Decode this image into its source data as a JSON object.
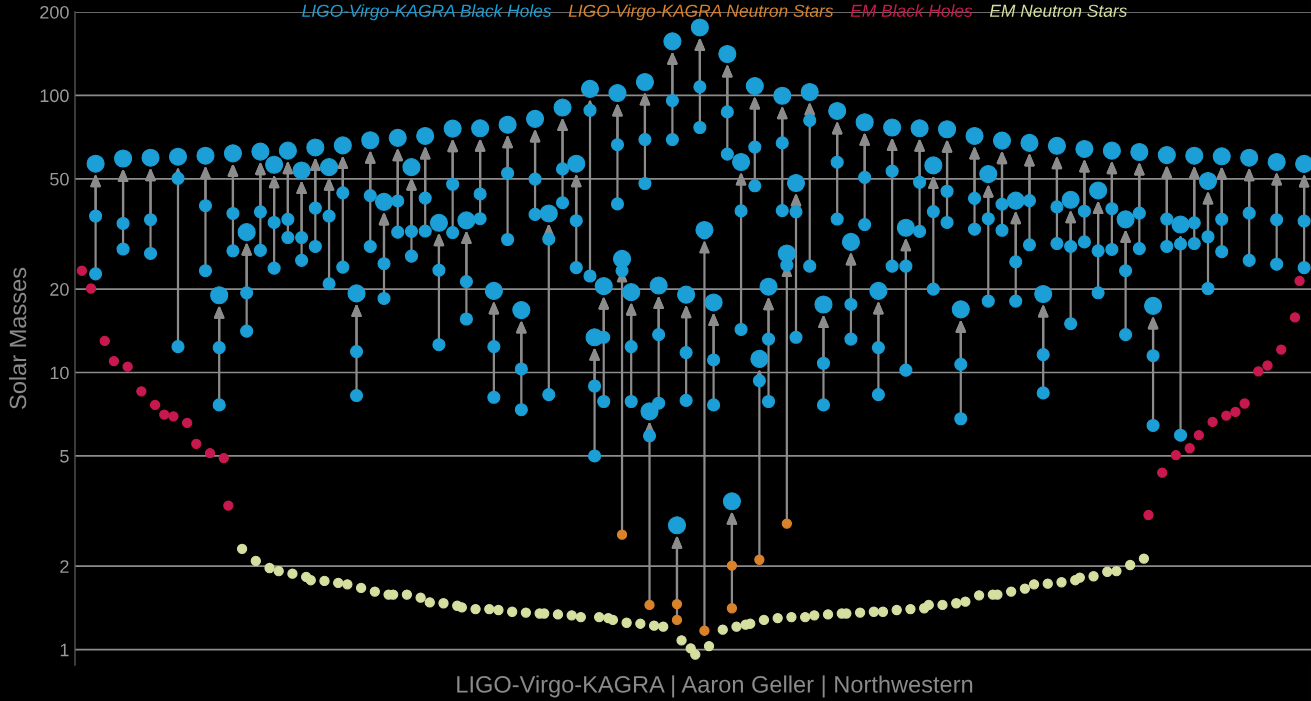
{
  "chart_data": {
    "type": "scatter",
    "ylabel": "Solar Masses",
    "log": "y",
    "ylim": [
      0.88,
      200
    ],
    "yticks": [
      1,
      2,
      5,
      10,
      20,
      50,
      100,
      200
    ],
    "tick_labels": "y",
    "grid": "y",
    "marker": "circle",
    "annotations": [
      "LIGO-Virgo-KAGRA | Aaron Geller | Northwestern"
    ],
    "categories": [
      null,
      null,
      null,
      null,
      null,
      null,
      null,
      null,
      null,
      null,
      null,
      null,
      null,
      null,
      null,
      null,
      null,
      null,
      null,
      null,
      null,
      null,
      null,
      null,
      null,
      null,
      null,
      null,
      null,
      null,
      null,
      null,
      null,
      null,
      null,
      null,
      null,
      null,
      null,
      null,
      null,
      null,
      null,
      null,
      null,
      null,
      null,
      null,
      null,
      null,
      null,
      null,
      null,
      null,
      null,
      null,
      null,
      null,
      null,
      null,
      null,
      null,
      null,
      null,
      null,
      null,
      null,
      null,
      null,
      null,
      null,
      null,
      null,
      null,
      null,
      null,
      null,
      null,
      null,
      null,
      null,
      null,
      null,
      null,
      null,
      null,
      null,
      null,
      null,
      null,
      null,
      null,
      null,
      null,
      null,
      null,
      null,
      null,
      null,
      null,
      null,
      null,
      null,
      null,
      null,
      null,
      null,
      null,
      null,
      null,
      null,
      null,
      null,
      null,
      null,
      null,
      null,
      null,
      null,
      null,
      null,
      null,
      null,
      null,
      null,
      null,
      null,
      null,
      null,
      null,
      null,
      null,
      null,
      null,
      null,
      null,
      null,
      null,
      null,
      null,
      null,
      null,
      null,
      null,
      null,
      null,
      null,
      null,
      null,
      null,
      null,
      null,
      null,
      null,
      null,
      null,
      null,
      null,
      null,
      null,
      null,
      null,
      null,
      null,
      null,
      null,
      null,
      null,
      null,
      null,
      null,
      null,
      null,
      null,
      null,
      null,
      null,
      null,
      null,
      null,
      null,
      null,
      null,
      null,
      null,
      null,
      null,
      null,
      null,
      null,
      null,
      null,
      null,
      null,
      null,
      null,
      null,
      null,
      null,
      null,
      null,
      null,
      null,
      null,
      null,
      null,
      null,
      null,
      null,
      null,
      null,
      null,
      null,
      null,
      null,
      null,
      null,
      null,
      null,
      null,
      null,
      null,
      null,
      null,
      null,
      null,
      null,
      null,
      null,
      null,
      null,
      null,
      null,
      null,
      null,
      null,
      null,
      null,
      null,
      null,
      null,
      null,
      null,
      null,
      null,
      null,
      null,
      null,
      null,
      null,
      null,
      null,
      null,
      null,
      null,
      null,
      null,
      null,
      null,
      null,
      null,
      null,
      null,
      null,
      null,
      null,
      null,
      null,
      null,
      null
    ],
    "series": [
      {
        "name": "LIGO-Virgo-KAGRA Black Holes",
        "color": "#1b9fd6",
        "values": [
          null,
          null,
          null,
          null,
          56.7,
          null,
          null,
          null,
          null,
          null,
          59.2,
          null,
          null,
          null,
          null,
          null,
          59.6,
          null,
          null,
          null,
          null,
          null,
          60.1,
          null,
          null,
          null,
          null,
          null,
          60.6,
          null,
          null,
          19.0,
          null,
          null,
          61.8,
          null,
          null,
          32.1,
          null,
          null,
          62.7,
          null,
          null,
          56.2,
          null,
          null,
          63.2,
          null,
          null,
          53.6,
          null,
          null,
          64.9,
          null,
          null,
          55.1,
          null,
          null,
          66.0,
          null,
          null,
          19.3,
          null,
          null,
          68.9,
          null,
          null,
          41.3,
          null,
          null,
          70.3,
          null,
          null,
          55.1,
          null,
          null,
          71.4,
          null,
          null,
          34.7,
          null,
          null,
          75.9,
          null,
          null,
          35.4,
          null,
          null,
          76.1,
          null,
          null,
          19.7,
          null,
          null,
          78.4,
          null,
          null,
          16.8,
          null,
          null,
          82.3,
          null,
          null,
          37.5,
          null,
          null,
          90.4,
          null,
          null,
          56.7,
          null,
          null,
          105.6,
          13.4,
          null,
          20.5,
          null,
          null,
          102,
          25.7,
          null,
          19.5,
          null,
          null,
          111.8,
          7.24,
          null,
          20.6,
          null,
          null,
          156.7,
          2.81,
          null,
          19.1,
          null,
          null,
          175.9,
          32.7,
          null,
          17.9,
          null,
          null,
          141.1,
          3.43,
          null,
          57.5,
          null,
          null,
          108.1,
          11.2,
          null,
          20.4,
          null,
          null,
          99.7,
          26.9,
          null,
          48.3,
          null,
          null,
          102.9,
          null,
          null,
          17.6,
          null,
          null,
          87.9,
          null,
          null,
          29.6,
          null,
          null,
          80.0,
          null,
          null,
          19.7,
          null,
          null,
          76.6,
          null,
          null,
          33.3,
          null,
          null,
          76.1,
          null,
          null,
          55.9,
          null,
          null,
          75.5,
          null,
          null,
          16.9,
          null,
          null,
          71.4,
          null,
          null,
          52.0,
          null,
          null,
          68.7,
          null,
          null,
          41.7,
          null,
          null,
          67.4,
          null,
          null,
          19.2,
          null,
          null,
          65.8,
          null,
          null,
          42.0,
          null,
          null,
          64.1,
          null,
          null,
          45.4,
          null,
          null,
          63.2,
          null,
          null,
          35.7,
          null,
          null,
          62.5,
          null,
          null,
          17.4,
          null,
          null,
          60.9,
          null,
          null,
          34.2,
          null,
          null,
          60.6,
          null,
          null,
          49.1,
          null,
          null,
          60.3,
          null,
          null,
          null,
          null,
          null,
          59.6,
          null,
          null,
          null,
          null,
          null,
          57.5,
          null,
          null,
          null,
          null,
          null,
          56.6,
          null
        ]
      },
      {
        "color": "#1b9fd6",
        "values": [
          null,
          null,
          null,
          null,
          36.7,
          null,
          null,
          null,
          null,
          null,
          34.5,
          null,
          null,
          null,
          null,
          null,
          35.6,
          null,
          null,
          null,
          null,
          null,
          50.2,
          null,
          null,
          null,
          null,
          null,
          40.0,
          null,
          null,
          12.3,
          null,
          null,
          37.5,
          null,
          null,
          19.4,
          null,
          null,
          38.0,
          null,
          null,
          34.8,
          null,
          null,
          35.7,
          null,
          null,
          30.7,
          null,
          null,
          39.2,
          null,
          null,
          36.7,
          null,
          null,
          44.5,
          null,
          null,
          11.9,
          null,
          null,
          43.5,
          null,
          null,
          24.7,
          null,
          null,
          41.6,
          null,
          null,
          32.3,
          null,
          null,
          42.6,
          null,
          null,
          23.4,
          null,
          null,
          47.8,
          null,
          null,
          21.3,
          null,
          null,
          44.1,
          null,
          null,
          12.4,
          null,
          null,
          52.4,
          null,
          null,
          10.3,
          null,
          null,
          49.9,
          null,
          null,
          30.3,
          null,
          null,
          54.3,
          null,
          null,
          35.3,
          null,
          null,
          88.4,
          8.94,
          null,
          13.4,
          null,
          null,
          66.4,
          23.3,
          null,
          12.4,
          null,
          null,
          69.3,
          5.91,
          null,
          13.7,
          null,
          null,
          95.8,
          null,
          null,
          11.8,
          null,
          null,
          107.4,
          31.9,
          null,
          11.1,
          null,
          null,
          87.2,
          null,
          null,
          38.3,
          null,
          null,
          65.1,
          9.34,
          null,
          13.2,
          null,
          null,
          67.4,
          24.4,
          null,
          38.0,
          null,
          null,
          81.2,
          null,
          null,
          10.8,
          null,
          null,
          57.4,
          null,
          null,
          17.6,
          null,
          null,
          50.6,
          null,
          null,
          12.3,
          null,
          null,
          53.3,
          null,
          null,
          24.2,
          null,
          null,
          48.6,
          null,
          null,
          38.1,
          null,
          null,
          45.1,
          null,
          null,
          10.7,
          null,
          null,
          42.5,
          null,
          null,
          35.9,
          null,
          null,
          40.5,
          null,
          null,
          25.1,
          null,
          null,
          41.7,
          null,
          null,
          11.6,
          null,
          null,
          39.6,
          null,
          null,
          28.5,
          null,
          null,
          38.2,
          null,
          null,
          27.5,
          null,
          null,
          39.0,
          null,
          null,
          23.3,
          null,
          null,
          37.6,
          null,
          null,
          11.5,
          null,
          null,
          35.8,
          null,
          null,
          29.1,
          null,
          null,
          34.7,
          null,
          null,
          30.9,
          null,
          null,
          35.7,
          null,
          null,
          null,
          null,
          null,
          37.6,
          null,
          null,
          null,
          null,
          null,
          35.6,
          null,
          null,
          null,
          null,
          null,
          35.2,
          null
        ]
      },
      {
        "color": "#1b9fd6",
        "values": [
          null,
          null,
          null,
          null,
          22.7,
          null,
          null,
          null,
          null,
          null,
          27.9,
          null,
          null,
          null,
          null,
          null,
          26.9,
          null,
          null,
          null,
          null,
          null,
          12.4,
          null,
          null,
          null,
          null,
          null,
          23.3,
          null,
          null,
          7.64,
          null,
          null,
          27.5,
          null,
          null,
          14.1,
          null,
          null,
          27.6,
          null,
          null,
          23.8,
          null,
          null,
          30.7,
          null,
          null,
          25.4,
          null,
          null,
          28.5,
          null,
          null,
          20.9,
          null,
          null,
          24.0,
          null,
          null,
          8.26,
          null,
          null,
          28.5,
          null,
          null,
          18.5,
          null,
          null,
          32.1,
          null,
          null,
          26.3,
          null,
          null,
          32.4,
          null,
          null,
          12.6,
          null,
          null,
          32.0,
          null,
          null,
          15.6,
          null,
          null,
          35.9,
          null,
          null,
          8.14,
          null,
          null,
          30.2,
          null,
          null,
          7.34,
          null,
          null,
          37.2,
          null,
          null,
          8.32,
          null,
          null,
          41.0,
          null,
          null,
          23.9,
          null,
          null,
          22.3,
          5.0,
          null,
          7.86,
          null,
          null,
          40.6,
          null,
          null,
          7.86,
          null,
          null,
          48.1,
          null,
          null,
          7.75,
          null,
          null,
          69.3,
          null,
          null,
          7.93,
          null,
          null,
          76.6,
          null,
          null,
          7.64,
          null,
          null,
          61.4,
          null,
          null,
          14.3,
          null,
          null,
          47.2,
          null,
          null,
          7.86,
          null,
          null,
          38.4,
          null,
          null,
          13.4,
          null,
          null,
          24.2,
          null,
          null,
          7.64,
          null,
          null,
          35.8,
          null,
          null,
          13.2,
          null,
          null,
          34.2,
          null,
          null,
          8.32,
          null,
          null,
          24.2,
          null,
          null,
          10.2,
          null,
          null,
          32.3,
          null,
          null,
          20.0,
          null,
          null,
          34.8,
          null,
          null,
          6.81,
          null,
          null,
          32.9,
          null,
          null,
          18.1,
          null,
          null,
          32.6,
          null,
          null,
          18.1,
          null,
          null,
          28.9,
          null,
          null,
          8.44,
          null,
          null,
          29.2,
          null,
          null,
          15.0,
          null,
          null,
          29.6,
          null,
          null,
          19.4,
          null,
          null,
          27.8,
          null,
          null,
          13.7,
          null,
          null,
          28.0,
          null,
          null,
          6.44,
          null,
          null,
          28.5,
          null,
          null,
          5.94,
          null,
          null,
          29.2,
          null,
          null,
          20.1,
          null,
          null,
          27.3,
          null,
          null,
          null,
          null,
          null,
          25.4,
          null,
          null,
          null,
          null,
          null,
          24.6,
          null,
          null,
          null,
          null,
          null,
          23.9,
          null
        ]
      },
      {
        "name": "LIGO-Virgo-KAGRA Neutron Stars",
        "color": "#d9822b",
        "values": [
          null,
          null,
          null,
          null,
          null,
          null,
          null,
          null,
          null,
          null,
          null,
          null,
          null,
          null,
          null,
          null,
          null,
          null,
          null,
          null,
          null,
          null,
          null,
          null,
          null,
          null,
          null,
          null,
          null,
          null,
          null,
          null,
          null,
          null,
          null,
          null,
          null,
          null,
          null,
          null,
          null,
          null,
          null,
          null,
          null,
          null,
          null,
          null,
          null,
          null,
          null,
          null,
          null,
          null,
          null,
          null,
          null,
          null,
          null,
          null,
          null,
          null,
          null,
          null,
          null,
          null,
          null,
          null,
          null,
          null,
          null,
          null,
          null,
          null,
          null,
          null,
          null,
          null,
          null,
          null,
          null,
          null,
          null,
          null,
          null,
          null,
          null,
          null,
          null,
          null,
          null,
          null,
          null,
          null,
          null,
          null,
          null,
          null,
          null,
          null,
          null,
          null,
          null,
          null,
          null,
          null,
          null,
          null,
          null,
          null,
          null,
          null,
          null,
          null,
          null,
          null,
          null,
          null,
          null,
          2.6,
          null,
          null,
          null,
          null,
          null,
          1.45,
          null,
          null,
          null,
          null,
          null,
          1.46,
          null,
          null,
          null,
          null,
          null,
          1.17,
          null,
          null,
          null,
          null,
          null,
          2.01,
          null,
          null,
          null,
          null,
          null,
          2.11,
          null,
          null,
          null,
          null,
          null,
          2.85,
          null,
          null,
          null,
          null,
          null,
          null,
          null,
          null,
          null,
          null,
          null,
          null,
          null,
          null,
          null,
          null,
          null,
          null,
          null,
          null,
          null,
          null,
          null,
          null,
          null,
          null,
          null,
          null,
          null,
          null,
          null,
          null,
          null,
          null,
          null,
          null,
          null,
          null,
          null,
          null,
          null,
          null,
          null,
          null,
          null,
          null,
          null,
          null,
          null,
          null,
          null,
          null,
          null,
          null,
          null,
          null,
          null,
          null,
          null,
          null,
          null,
          null,
          null,
          null,
          null,
          null,
          null,
          null,
          null,
          null,
          null,
          null,
          null,
          null,
          null,
          null,
          null,
          null,
          null,
          null,
          null,
          null,
          null,
          null,
          null,
          null,
          null,
          null,
          null,
          null,
          null,
          null,
          null,
          null,
          null,
          null,
          null,
          null,
          null,
          null,
          null,
          null,
          null,
          null,
          null,
          null,
          null,
          null,
          null,
          null,
          null,
          null,
          null,
          null
        ]
      },
      {
        "color": "#d9822b",
        "values": [
          null,
          null,
          null,
          null,
          null,
          null,
          null,
          null,
          null,
          null,
          null,
          null,
          null,
          null,
          null,
          null,
          null,
          null,
          null,
          null,
          null,
          null,
          null,
          null,
          null,
          null,
          null,
          null,
          null,
          null,
          null,
          null,
          null,
          null,
          null,
          null,
          null,
          null,
          null,
          null,
          null,
          null,
          null,
          null,
          null,
          null,
          null,
          null,
          null,
          null,
          null,
          null,
          null,
          null,
          null,
          null,
          null,
          null,
          null,
          null,
          null,
          null,
          null,
          null,
          null,
          null,
          null,
          null,
          null,
          null,
          null,
          null,
          null,
          null,
          null,
          null,
          null,
          null,
          null,
          null,
          null,
          null,
          null,
          null,
          null,
          null,
          null,
          null,
          null,
          null,
          null,
          null,
          null,
          null,
          null,
          null,
          null,
          null,
          null,
          null,
          null,
          null,
          null,
          null,
          null,
          null,
          null,
          null,
          null,
          null,
          null,
          null,
          null,
          null,
          null,
          null,
          null,
          null,
          null,
          null,
          null,
          null,
          null,
          null,
          null,
          null,
          null,
          null,
          null,
          null,
          null,
          1.28,
          null,
          null,
          null,
          null,
          null,
          null,
          null,
          null,
          null,
          null,
          null,
          1.41,
          null,
          null,
          null,
          null,
          null,
          null,
          null,
          null,
          null,
          null,
          null,
          null,
          null,
          null,
          null,
          null,
          null,
          null,
          null,
          null,
          null,
          null,
          null,
          null,
          null,
          null,
          null,
          null,
          null,
          null,
          null,
          null,
          null,
          null,
          null,
          null,
          null,
          null,
          null,
          null,
          null,
          null,
          null,
          null,
          null,
          null,
          null,
          null,
          null,
          null,
          null,
          null,
          null,
          null,
          null,
          null,
          null,
          null,
          null,
          null,
          null,
          null,
          null,
          null,
          null,
          null,
          null,
          null,
          null,
          null,
          null,
          null,
          null,
          null,
          null,
          null,
          null,
          null,
          null,
          null,
          null,
          null,
          null,
          null,
          null,
          null,
          null,
          null,
          null,
          null,
          null,
          null,
          null,
          null,
          null,
          null,
          null,
          null,
          null,
          null,
          null,
          null,
          null,
          null,
          null,
          null,
          null,
          null,
          null,
          null,
          null,
          null,
          null,
          null,
          null,
          null,
          null,
          null,
          null,
          null,
          null,
          null,
          null,
          null,
          null,
          null
        ]
      },
      {
        "name": "EM Black Holes",
        "color": "#c8194f",
        "values": [
          null,
          23.3,
          null,
          20.1,
          null,
          null,
          13.0,
          null,
          11.0,
          null,
          null,
          10.5,
          null,
          null,
          8.55,
          null,
          null,
          7.64,
          null,
          7.05,
          null,
          6.95,
          null,
          null,
          6.58,
          null,
          5.53,
          null,
          null,
          5.12,
          null,
          null,
          4.91,
          3.31,
          null,
          null,
          null,
          null,
          null,
          null,
          null,
          null,
          null,
          null,
          null,
          null,
          null,
          null,
          null,
          null,
          null,
          null,
          null,
          null,
          null,
          null,
          null,
          null,
          null,
          null,
          null,
          null,
          null,
          null,
          null,
          null,
          null,
          null,
          null,
          null,
          null,
          null,
          null,
          null,
          null,
          null,
          null,
          null,
          null,
          null,
          null,
          null,
          null,
          null,
          null,
          null,
          null,
          null,
          null,
          null,
          null,
          null,
          null,
          null,
          null,
          null,
          null,
          null,
          null,
          null,
          null,
          null,
          null,
          null,
          null,
          null,
          null,
          null,
          null,
          null,
          null,
          null,
          null,
          null,
          null,
          null,
          null,
          null,
          null,
          null,
          null,
          null,
          null,
          null,
          null,
          null,
          null,
          null,
          null,
          null,
          null,
          null,
          null,
          null,
          null,
          null,
          null,
          null,
          null,
          null,
          null,
          null,
          null,
          null,
          null,
          null,
          null,
          null,
          null,
          null,
          null,
          null,
          null,
          null,
          null,
          null,
          null,
          null,
          null,
          null,
          null,
          null,
          null,
          null,
          null,
          null,
          null,
          null,
          null,
          null,
          null,
          null,
          null,
          null,
          null,
          null,
          null,
          null,
          null,
          null,
          null,
          null,
          null,
          null,
          null,
          null,
          null,
          null,
          null,
          null,
          null,
          null,
          null,
          null,
          null,
          null,
          null,
          null,
          null,
          null,
          null,
          null,
          null,
          null,
          null,
          null,
          null,
          null,
          null,
          null,
          null,
          null,
          null,
          null,
          null,
          null,
          null,
          null,
          null,
          null,
          null,
          null,
          null,
          null,
          null,
          null,
          null,
          null,
          null,
          null,
          null,
          null,
          null,
          null,
          3.06,
          null,
          null,
          4.35,
          null,
          null,
          5.03,
          null,
          null,
          5.33,
          null,
          5.94,
          null,
          null,
          6.64,
          null,
          null,
          6.99,
          null,
          7.21,
          null,
          7.73,
          null,
          null,
          10.1,
          null,
          10.6,
          null,
          null,
          12.1,
          null,
          null,
          15.8,
          21.4,
          null,
          null
        ]
      },
      {
        "name": "EM Neutron Stars",
        "color": "#d6dfa0",
        "values": [
          null,
          null,
          null,
          null,
          null,
          null,
          null,
          null,
          null,
          null,
          null,
          null,
          null,
          null,
          null,
          null,
          null,
          null,
          null,
          null,
          null,
          null,
          null,
          null,
          null,
          null,
          null,
          null,
          null,
          null,
          null,
          null,
          null,
          null,
          null,
          null,
          2.31,
          null,
          null,
          2.09,
          null,
          null,
          1.97,
          null,
          1.92,
          null,
          null,
          1.88,
          null,
          null,
          1.83,
          1.78,
          null,
          null,
          1.77,
          null,
          null,
          1.74,
          null,
          1.72,
          null,
          null,
          1.67,
          null,
          null,
          1.62,
          null,
          null,
          1.58,
          1.58,
          null,
          null,
          1.58,
          null,
          null,
          1.54,
          null,
          1.48,
          null,
          null,
          1.47,
          null,
          null,
          1.44,
          1.42,
          null,
          null,
          1.4,
          null,
          null,
          1.4,
          null,
          1.39,
          null,
          null,
          1.37,
          null,
          null,
          1.36,
          null,
          null,
          1.35,
          1.35,
          null,
          null,
          1.34,
          null,
          null,
          1.33,
          null,
          1.31,
          null,
          null,
          null,
          1.31,
          null,
          1.3,
          1.28,
          null,
          null,
          1.25,
          null,
          null,
          1.24,
          null,
          null,
          1.22,
          null,
          1.21,
          null,
          null,
          null,
          1.08,
          null,
          1.01,
          0.96,
          null,
          null,
          1.03,
          null,
          null,
          1.18,
          null,
          null,
          1.21,
          null,
          1.23,
          1.24,
          null,
          null,
          1.28,
          null,
          null,
          1.3,
          null,
          null,
          1.31,
          null,
          null,
          1.31,
          null,
          1.33,
          null,
          null,
          1.34,
          null,
          null,
          1.35,
          1.35,
          null,
          null,
          1.36,
          null,
          null,
          1.37,
          null,
          1.37,
          null,
          null,
          1.39,
          null,
          null,
          1.4,
          null,
          null,
          1.41,
          1.45,
          null,
          null,
          1.45,
          null,
          null,
          1.47,
          null,
          1.49,
          null,
          null,
          1.57,
          null,
          null,
          1.58,
          1.58,
          null,
          null,
          1.62,
          null,
          null,
          1.66,
          null,
          1.72,
          null,
          null,
          1.73,
          null,
          null,
          1.75,
          null,
          null,
          1.78,
          1.82,
          null,
          null,
          1.84,
          null,
          null,
          1.91,
          null,
          1.92,
          null,
          null,
          2.02,
          null,
          null,
          2.13,
          null,
          null,
          null,
          null,
          null,
          null,
          null,
          null,
          null,
          null,
          null,
          null,
          null,
          null,
          null,
          null,
          null,
          null,
          null,
          null,
          null,
          null,
          null,
          null,
          null,
          null,
          null,
          null,
          null,
          null,
          null,
          null,
          null,
          null,
          null,
          null
        ]
      }
    ]
  }
}
